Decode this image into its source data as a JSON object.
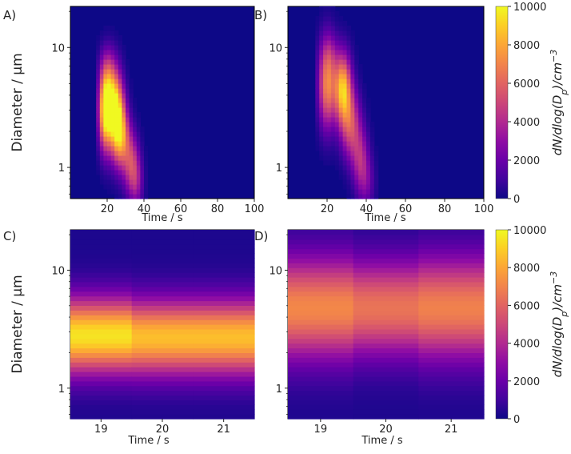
{
  "chart_data": [
    {
      "type": "heatmap",
      "panel_label": "A)",
      "xlabel": "Time / s",
      "ylabel": "Diameter / µm",
      "xlim": [
        0,
        100
      ],
      "x_ticks": [
        "20",
        "40",
        "60",
        "80",
        "100"
      ],
      "y_scale": "log",
      "ylim": [
        0.55,
        22
      ],
      "y_ticks": [
        "1",
        "10"
      ],
      "colormap": "plasma",
      "blobs": [
        {
          "t": 19,
          "d": 2.9,
          "st": 2.5,
          "sd": 0.22,
          "amp": 9000
        },
        {
          "t": 25,
          "d": 2.6,
          "st": 3,
          "sd": 0.22,
          "amp": 8500
        },
        {
          "t": 22,
          "d": 4.2,
          "st": 3.5,
          "sd": 0.2,
          "amp": 4500
        },
        {
          "t": 28,
          "d": 1.8,
          "st": 3,
          "sd": 0.18,
          "amp": 5000
        },
        {
          "t": 33,
          "d": 1.1,
          "st": 3,
          "sd": 0.18,
          "amp": 4500
        },
        {
          "t": 36,
          "d": 0.75,
          "st": 2.5,
          "sd": 0.15,
          "amp": 2500
        },
        {
          "t": 20,
          "d": 7.0,
          "st": 3,
          "sd": 0.13,
          "amp": 1500
        }
      ]
    },
    {
      "type": "heatmap",
      "panel_label": "B)",
      "xlabel": "Time / s",
      "ylabel": "",
      "xlim": [
        0,
        100
      ],
      "x_ticks": [
        "20",
        "40",
        "60",
        "80",
        "100"
      ],
      "y_scale": "log",
      "ylim": [
        0.55,
        22
      ],
      "y_ticks": [
        "1",
        "10"
      ],
      "colormap": "plasma",
      "blobs": [
        {
          "t": 20,
          "d": 5.0,
          "st": 3,
          "sd": 0.25,
          "amp": 7000
        },
        {
          "t": 28,
          "d": 4.6,
          "st": 3,
          "sd": 0.2,
          "amp": 8500
        },
        {
          "t": 32,
          "d": 2.3,
          "st": 3.5,
          "sd": 0.2,
          "amp": 5000
        },
        {
          "t": 37,
          "d": 1.2,
          "st": 3,
          "sd": 0.18,
          "amp": 3500
        },
        {
          "t": 40,
          "d": 0.75,
          "st": 3,
          "sd": 0.15,
          "amp": 2000
        },
        {
          "t": 22,
          "d": 9.0,
          "st": 3,
          "sd": 0.12,
          "amp": 1000
        }
      ]
    },
    {
      "type": "heatmap",
      "panel_label": "C)",
      "xlabel": "Time / s",
      "ylabel": "Diameter / µm",
      "xlim": [
        18.5,
        21.5
      ],
      "x_ticks": [
        "19",
        "20",
        "21"
      ],
      "y_scale": "log",
      "ylim": [
        0.55,
        22
      ],
      "y_ticks": [
        "1",
        "10"
      ],
      "colormap": "plasma",
      "profiles": [
        {
          "t": 19,
          "peak_d": 2.8,
          "width": 0.22,
          "amp": 9200
        },
        {
          "t": 20,
          "peak_d": 2.7,
          "width": 0.22,
          "amp": 8300
        },
        {
          "t": 21,
          "peak_d": 2.7,
          "width": 0.22,
          "amp": 8300
        }
      ]
    },
    {
      "type": "heatmap",
      "panel_label": "D)",
      "xlabel": "Time / s",
      "ylabel": "",
      "xlim": [
        18.5,
        21.5
      ],
      "x_ticks": [
        "19",
        "20",
        "21"
      ],
      "y_scale": "log",
      "ylim": [
        0.55,
        22
      ],
      "y_ticks": [
        "1",
        "10"
      ],
      "colormap": "plasma",
      "profiles": [
        {
          "t": 19,
          "peak_d": 4.8,
          "width": 0.3,
          "amp": 6800
        },
        {
          "t": 20,
          "peak_d": 4.8,
          "width": 0.28,
          "amp": 6200
        },
        {
          "t": 21,
          "peak_d": 4.8,
          "width": 0.3,
          "amp": 6600
        }
      ]
    }
  ],
  "colorbar": {
    "ticks": [
      "0",
      "2000",
      "4000",
      "6000",
      "8000",
      "10000"
    ],
    "range": [
      0,
      10000
    ],
    "label": "dN/dlog(Dp)/cm-3",
    "label_main": "dN/dlog(D",
    "label_sub": "p",
    "label_tail": ")/cm",
    "label_sup": "−3"
  }
}
